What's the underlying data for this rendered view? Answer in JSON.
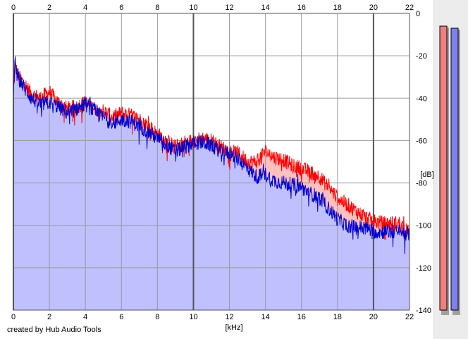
{
  "footer": {
    "credit": "created by Hub Audio Tools"
  },
  "chart_data": {
    "type": "area",
    "title": "",
    "xlabel": "[kHz]",
    "ylabel": "[dB]",
    "xlim": [
      0,
      22
    ],
    "ylim": [
      -140,
      0
    ],
    "x_ticks": [
      0,
      2,
      4,
      6,
      8,
      10,
      12,
      14,
      16,
      18,
      20,
      22
    ],
    "y_ticks": [
      0,
      -20,
      -40,
      -60,
      -80,
      -100,
      -120,
      -140
    ],
    "grid": true,
    "fill_color": "#c0c0ff",
    "diff_fill_color": "#ffc0c0",
    "series": [
      {
        "color": "#ff0000",
        "x": [
          0,
          0.1,
          0.3,
          0.6,
          1.0,
          1.5,
          2.0,
          2.5,
          3.0,
          3.5,
          4.0,
          4.5,
          5.0,
          5.5,
          6.0,
          6.5,
          7.0,
          7.5,
          8.0,
          8.5,
          9.0,
          9.5,
          10.0,
          10.5,
          11.0,
          11.5,
          12.0,
          12.5,
          13.0,
          13.5,
          14.0,
          14.5,
          15.0,
          15.5,
          16.0,
          16.5,
          17.0,
          17.5,
          18.0,
          18.5,
          19.0,
          19.5,
          20.0,
          20.5,
          21.0,
          21.5,
          22.0
        ],
        "values": [
          -38,
          -25,
          -30,
          -33,
          -38,
          -40,
          -37,
          -42,
          -45,
          -44,
          -42,
          -45,
          -46,
          -49,
          -47,
          -48,
          -50,
          -53,
          -57,
          -60,
          -63,
          -61,
          -60,
          -59,
          -60,
          -63,
          -65,
          -66,
          -70,
          -70,
          -65,
          -68,
          -69,
          -72,
          -73,
          -75,
          -77,
          -82,
          -87,
          -90,
          -93,
          -96,
          -98,
          -99,
          -99,
          -99,
          -104
        ]
      },
      {
        "color": "#0000cc",
        "x": [
          0,
          0.1,
          0.3,
          0.6,
          1.0,
          1.5,
          2.0,
          2.5,
          3.0,
          3.5,
          4.0,
          4.5,
          5.0,
          5.5,
          6.0,
          6.5,
          7.0,
          7.5,
          8.0,
          8.5,
          9.0,
          9.5,
          10.0,
          10.5,
          11.0,
          11.5,
          12.0,
          12.5,
          13.0,
          13.5,
          14.0,
          14.5,
          15.0,
          15.5,
          16.0,
          16.5,
          17.0,
          17.5,
          18.0,
          18.5,
          19.0,
          19.5,
          20.0,
          20.5,
          21.0,
          21.5,
          22.0
        ],
        "values": [
          -38,
          -23,
          -31,
          -35,
          -40,
          -43,
          -42,
          -44,
          -47,
          -45,
          -43,
          -46,
          -49,
          -52,
          -50,
          -51,
          -53,
          -56,
          -59,
          -62,
          -65,
          -63,
          -61,
          -61,
          -62,
          -65,
          -66,
          -69,
          -73,
          -77,
          -76,
          -79,
          -80,
          -81,
          -82,
          -85,
          -87,
          -92,
          -97,
          -100,
          -101,
          -101,
          -103,
          -103,
          -103,
          -103,
          -104
        ]
      }
    ],
    "level_meters": [
      {
        "color": "#f08080",
        "level_db": -6
      },
      {
        "color": "#8080f0",
        "level_db": -7
      }
    ]
  }
}
